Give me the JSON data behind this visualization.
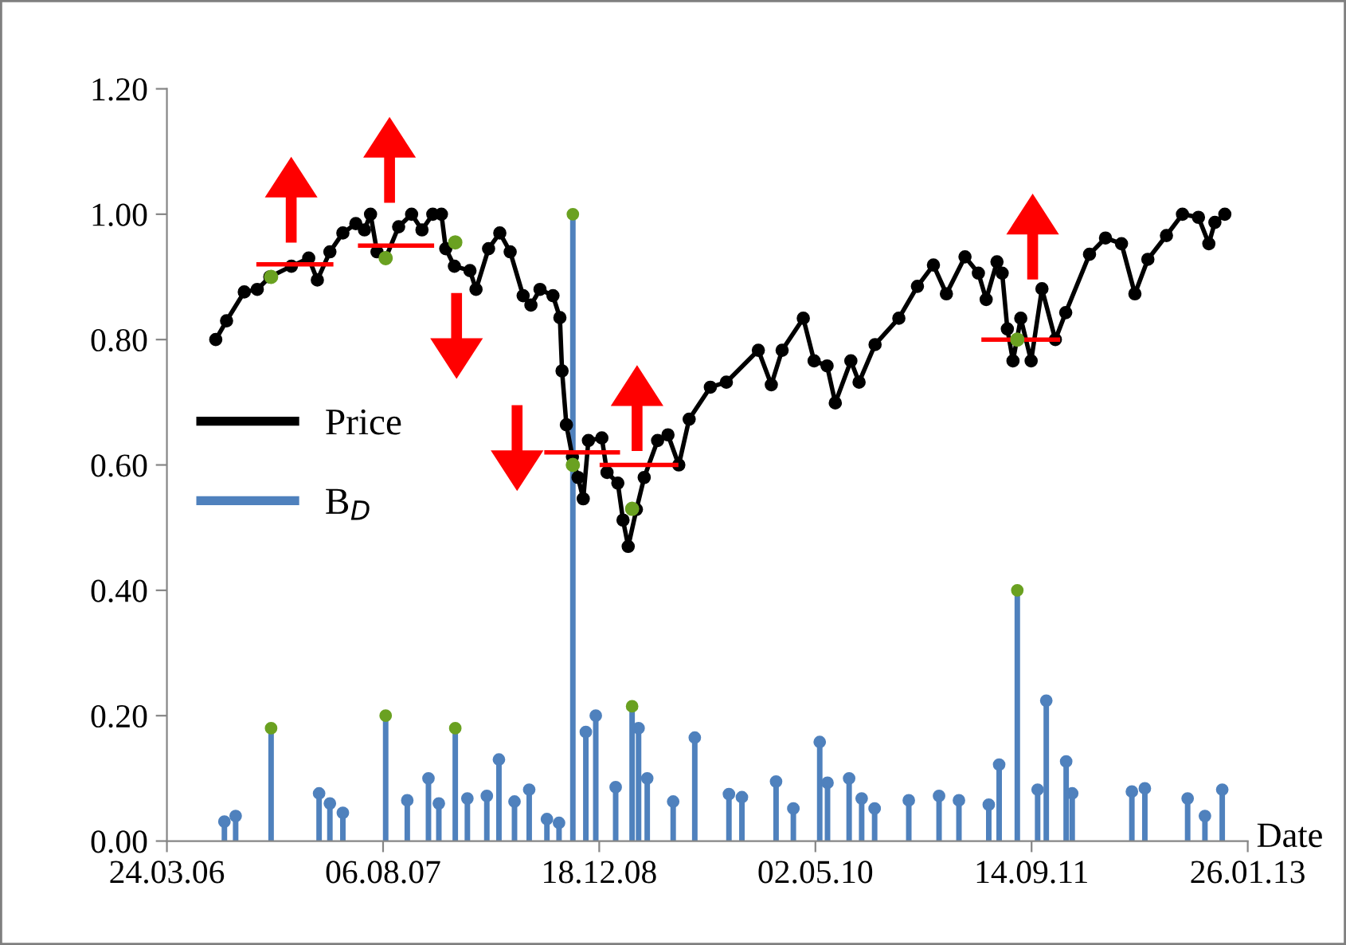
{
  "chart_data": {
    "type": "line",
    "xlabel": "Date",
    "marker": "circle",
    "legend": "center left",
    "grid": false,
    "xlim": [
      "2006-03-24",
      "2013-01-26"
    ],
    "xticks": [
      {
        "value": "2006-03-24",
        "label": "24.03.06"
      },
      {
        "value": "2007-08-06",
        "label": "06.08.07"
      },
      {
        "value": "2008-12-18",
        "label": "18.12.08"
      },
      {
        "value": "2010-05-02",
        "label": "02.05.10"
      },
      {
        "value": "2011-09-14",
        "label": "14.09.11"
      },
      {
        "value": "2013-01-26",
        "label": "26.01.13"
      }
    ],
    "ylim": [
      0,
      1.2
    ],
    "yticks": [
      {
        "value": 0,
        "label": "0.00"
      },
      {
        "value": 0.2,
        "label": "0.20"
      },
      {
        "value": 0.4,
        "label": "0.40"
      },
      {
        "value": 0.6,
        "label": "0.60"
      },
      {
        "value": 0.8,
        "label": "0.80"
      },
      {
        "value": 1.0,
        "label": "1.00"
      },
      {
        "value": 1.2,
        "label": "1.20"
      }
    ],
    "series": [
      {
        "name": "Price",
        "color": "#000000",
        "x": [
          "2006-07-15",
          "2006-08-09",
          "2006-09-19",
          "2006-10-19",
          "2006-11-17",
          "2007-01-06",
          "2007-02-15",
          "2007-03-07",
          "2007-04-05",
          "2007-05-05",
          "2007-06-04",
          "2007-06-24",
          "2007-07-08",
          "2007-07-23",
          "2007-08-12",
          "2007-09-11",
          "2007-10-11",
          "2007-11-04",
          "2007-11-29",
          "2007-12-19",
          "2007-12-29",
          "2008-01-18",
          "2008-02-23",
          "2008-03-08",
          "2008-04-06",
          "2008-05-02",
          "2008-05-26",
          "2008-06-25",
          "2008-07-13",
          "2008-08-03",
          "2008-09-02",
          "2008-09-18",
          "2008-09-23",
          "2008-10-03",
          "2008-10-17",
          "2008-10-30",
          "2008-11-11",
          "2008-11-23",
          "2008-12-24",
          "2009-01-05",
          "2009-01-30",
          "2009-02-11",
          "2009-02-23",
          "2009-03-14",
          "2009-04-01",
          "2009-05-02",
          "2009-05-26",
          "2009-06-20",
          "2009-07-14",
          "2009-09-01",
          "2009-10-08",
          "2009-12-21",
          "2010-01-20",
          "2010-02-14",
          "2010-04-04",
          "2010-04-29",
          "2010-05-29",
          "2010-06-17",
          "2010-07-23",
          "2010-08-11",
          "2010-09-17",
          "2010-11-11",
          "2010-12-24",
          "2011-01-30",
          "2011-03-01",
          "2011-04-13",
          "2011-05-14",
          "2011-06-01",
          "2011-06-26",
          "2011-07-08",
          "2011-07-20",
          "2011-08-02",
          "2011-08-20",
          "2011-09-13",
          "2011-10-08",
          "2011-11-08",
          "2011-12-02",
          "2012-01-26",
          "2012-03-03",
          "2012-04-09",
          "2012-05-10",
          "2012-06-09",
          "2012-07-22",
          "2012-08-28",
          "2012-10-04",
          "2012-10-28",
          "2012-11-11",
          "2012-12-04"
        ],
        "values": [
          0.8,
          0.83,
          0.876,
          0.88,
          0.9,
          0.917,
          0.93,
          0.895,
          0.94,
          0.97,
          0.985,
          0.975,
          1.0,
          0.94,
          0.93,
          0.98,
          1.0,
          0.975,
          1.0,
          1.0,
          0.945,
          0.917,
          0.91,
          0.88,
          0.945,
          0.97,
          0.94,
          0.87,
          0.855,
          0.88,
          0.87,
          0.835,
          0.75,
          0.664,
          0.613,
          0.58,
          0.546,
          0.639,
          0.643,
          0.588,
          0.571,
          0.512,
          0.47,
          0.529,
          0.58,
          0.639,
          0.648,
          0.6,
          0.673,
          0.724,
          0.732,
          0.783,
          0.728,
          0.783,
          0.834,
          0.766,
          0.758,
          0.699,
          0.766,
          0.732,
          0.792,
          0.834,
          0.885,
          0.919,
          0.873,
          0.932,
          0.906,
          0.864,
          0.924,
          0.906,
          0.817,
          0.766,
          0.834,
          0.766,
          0.881,
          0.8,
          0.843,
          0.936,
          0.962,
          0.953,
          0.873,
          0.928,
          0.966,
          1.0,
          0.995,
          0.953,
          0.987,
          1.0
        ]
      },
      {
        "name": "B$_{D}$",
        "type": "lollipop",
        "color": "#4f81bd",
        "colors": [
          "#4f81bd",
          "#4f81bd",
          "#6aa121",
          "#4f81bd",
          "#4f81bd",
          "#4f81bd",
          "#6aa121",
          "#4f81bd",
          "#4f81bd",
          "#4f81bd",
          "#6aa121",
          "#4f81bd",
          "#4f81bd",
          "#4f81bd",
          "#4f81bd",
          "#4f81bd",
          "#4f81bd",
          "#4f81bd",
          "#6aa121",
          "#4f81bd",
          "#4f81bd",
          "#4f81bd",
          "#6aa121",
          "#4f81bd",
          "#4f81bd",
          "#4f81bd",
          "#4f81bd",
          "#4f81bd",
          "#4f81bd",
          "#4f81bd",
          "#4f81bd",
          "#4f81bd",
          "#4f81bd",
          "#4f81bd",
          "#4f81bd",
          "#4f81bd",
          "#4f81bd",
          "#4f81bd",
          "#4f81bd",
          "#4f81bd",
          "#4f81bd",
          "#6aa121",
          "#4f81bd",
          "#4f81bd",
          "#4f81bd",
          "#4f81bd",
          "#4f81bd",
          "#4f81bd",
          "#4f81bd",
          "#4f81bd",
          "#4f81bd"
        ],
        "x": [
          "2006-08-04",
          "2006-08-30",
          "2006-11-20",
          "2007-03-11",
          "2007-04-05",
          "2007-05-05",
          "2007-08-12",
          "2007-10-01",
          "2007-11-19",
          "2007-12-13",
          "2008-01-20",
          "2008-02-17",
          "2008-04-02",
          "2008-04-30",
          "2008-06-05",
          "2008-07-09",
          "2008-08-19",
          "2008-09-16",
          "2008-10-18",
          "2008-11-17",
          "2008-12-10",
          "2009-01-25",
          "2009-03-04",
          "2009-03-19",
          "2009-04-08",
          "2009-06-07",
          "2009-07-27",
          "2009-10-14",
          "2009-11-13",
          "2010-01-31",
          "2010-03-12",
          "2010-05-12",
          "2010-05-30",
          "2010-07-19",
          "2010-08-17",
          "2010-09-16",
          "2010-12-04",
          "2011-02-12",
          "2011-03-30",
          "2011-06-07",
          "2011-07-01",
          "2011-08-12",
          "2011-09-28",
          "2011-10-18",
          "2011-12-03",
          "2011-12-17",
          "2012-05-03",
          "2012-06-02",
          "2012-09-09",
          "2012-10-19",
          "2012-11-28"
        ],
        "values": [
          0.031,
          0.04,
          0.18,
          0.076,
          0.06,
          0.045,
          0.2,
          0.065,
          0.1,
          0.06,
          0.18,
          0.068,
          0.072,
          0.13,
          0.063,
          0.082,
          0.035,
          0.029,
          1.0,
          0.174,
          0.2,
          0.086,
          0.215,
          0.18,
          0.1,
          0.063,
          0.165,
          0.075,
          0.07,
          0.095,
          0.052,
          0.158,
          0.093,
          0.1,
          0.068,
          0.052,
          0.065,
          0.072,
          0.065,
          0.058,
          0.122,
          0.4,
          0.082,
          0.224,
          0.127,
          0.076,
          0.079,
          0.084,
          0.068,
          0.04,
          0.082
        ]
      },
      {
        "type": "line",
        "color": "#ff0000",
        "marker": "none",
        "x": [
          "2006-10-22",
          "2007-04-08"
        ],
        "values": [
          0.92,
          0.92
        ]
      },
      {
        "type": "line",
        "color": "#ff0000",
        "marker": "none",
        "x": [
          "2007-06-14",
          "2007-11-27"
        ],
        "values": [
          0.95,
          0.95
        ]
      },
      {
        "type": "line",
        "color": "#ff0000",
        "marker": "none",
        "x": [
          "2008-08-18",
          "2009-01-30"
        ],
        "values": [
          0.62,
          0.62
        ]
      },
      {
        "type": "line",
        "color": "#ff0000",
        "marker": "none",
        "x": [
          "2008-12-24",
          "2009-06-14"
        ],
        "values": [
          0.6,
          0.6
        ]
      },
      {
        "type": "line",
        "color": "#ff0000",
        "marker": "none",
        "x": [
          "2011-05-26",
          "2011-11-14"
        ],
        "values": [
          0.8,
          0.8
        ]
      },
      {
        "type": "scatter",
        "color": "#6aa121",
        "x": [
          "2006-11-20",
          "2007-08-12",
          "2008-01-20",
          "2008-10-18",
          "2009-03-04",
          "2011-08-12"
        ],
        "values": [
          0.9,
          0.93,
          0.955,
          0.6,
          0.53,
          0.8
        ]
      }
    ]
  }
}
